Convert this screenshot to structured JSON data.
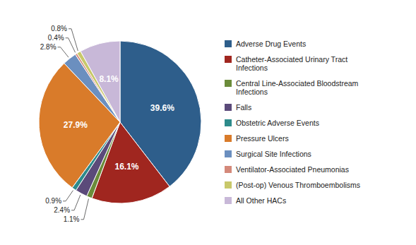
{
  "chart_data": {
    "type": "pie",
    "categories": [
      "Adverse Drug Events",
      "Catheter-Associated Urinary Tract\nInfections",
      "Central Line-Associated Bloodstream\nInfections",
      "Falls",
      "Obstetric Adverse Events",
      "Pressure Ulcers",
      "Surgical Site Infections",
      "Ventilator-Associated Pneumonias",
      "(Post-op) Venous Thromboembolisms",
      "All Other HACs"
    ],
    "values": [
      39.6,
      16.1,
      1.1,
      2.4,
      0.9,
      27.9,
      2.8,
      0.4,
      0.8,
      8.1
    ],
    "value_labels": [
      "39.6%",
      "16.1%",
      "1.1%",
      "2.4%",
      "0.9%",
      "27.9%",
      "2.8%",
      "0.4%",
      "0.8%",
      "8.1%"
    ],
    "colors": [
      "#2E5E8B",
      "#A0261F",
      "#6B8C3A",
      "#5B4A7A",
      "#2E8B8B",
      "#D97B2A",
      "#6B8FBF",
      "#D4897A",
      "#C8C86A",
      "#C8B8D8"
    ],
    "data_labels": true,
    "legend": "right"
  }
}
